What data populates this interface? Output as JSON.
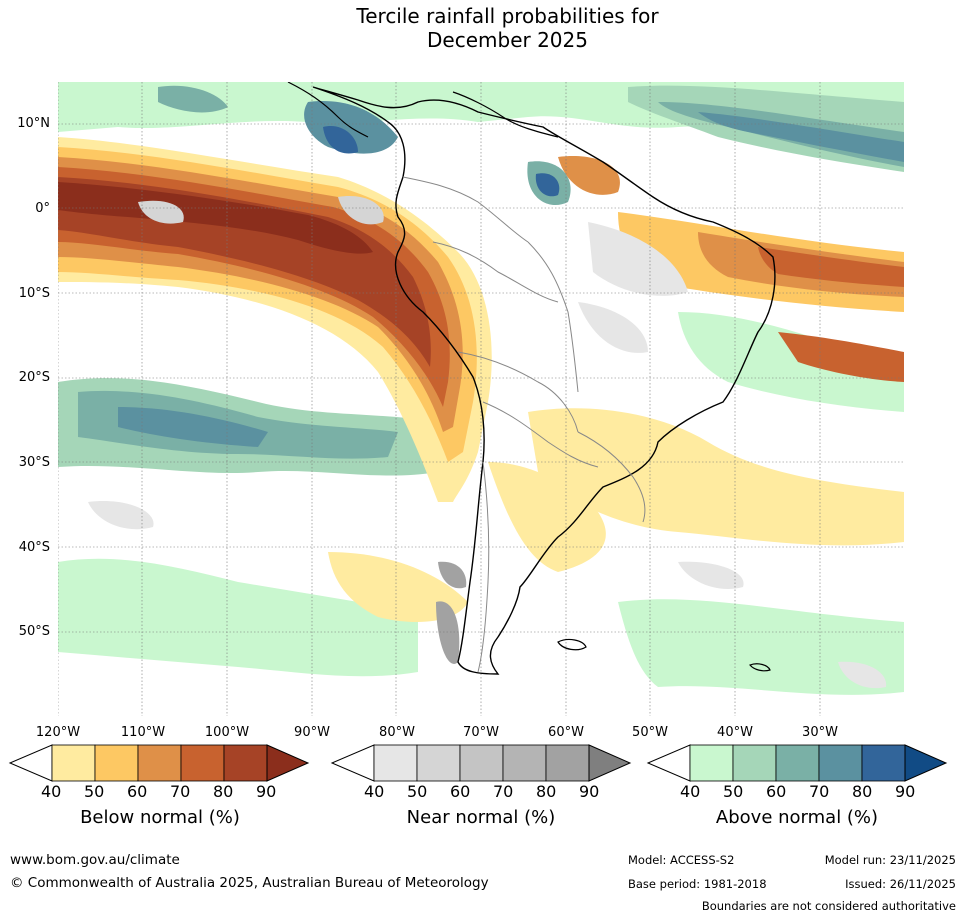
{
  "title": {
    "line1": "Tercile rainfall probabilities for",
    "line2": "December 2025"
  },
  "map": {
    "latitude_labels": [
      "10°N",
      "0°",
      "10°S",
      "20°S",
      "30°S",
      "40°S",
      "50°S"
    ],
    "longitude_labels": [
      "120°W",
      "110°W",
      "100°W",
      "90°W",
      "80°W",
      "70°W",
      "60°W",
      "50°W",
      "40°W",
      "30°W"
    ],
    "region": "South America and surrounding oceans"
  },
  "legends": {
    "below": {
      "title": "Below normal (%)",
      "ticks": [
        "40",
        "50",
        "60",
        "70",
        "80",
        "90"
      ],
      "colors": [
        "#ffeba0",
        "#fdc863",
        "#df9048",
        "#c8622f",
        "#a64326",
        "#8b2e1c"
      ]
    },
    "near": {
      "title": "Near normal (%)",
      "ticks": [
        "40",
        "50",
        "60",
        "70",
        "80",
        "90"
      ],
      "colors": [
        "#e6e6e6",
        "#d5d5d5",
        "#c4c4c4",
        "#b4b4b4",
        "#a2a2a2",
        "#7f7f7f"
      ]
    },
    "above": {
      "title": "Above normal (%)",
      "ticks": [
        "40",
        "50",
        "60",
        "70",
        "80",
        "90"
      ],
      "colors": [
        "#c9f7cf",
        "#a5d6b8",
        "#7ab0a6",
        "#5b91a0",
        "#32659a",
        "#114b85"
      ]
    }
  },
  "footer": {
    "website": "www.bom.gov.au/climate",
    "copyright": "© Commonwealth of Australia 2025, Australian Bureau of Meteorology",
    "model": "Model: ACCESS-S2",
    "base_period": "Base period: 1981-2018",
    "model_run": "Model run: 23/11/2025",
    "issued": "Issued: 26/11/2025",
    "disclaimer": "Boundaries are not considered authoritative"
  }
}
